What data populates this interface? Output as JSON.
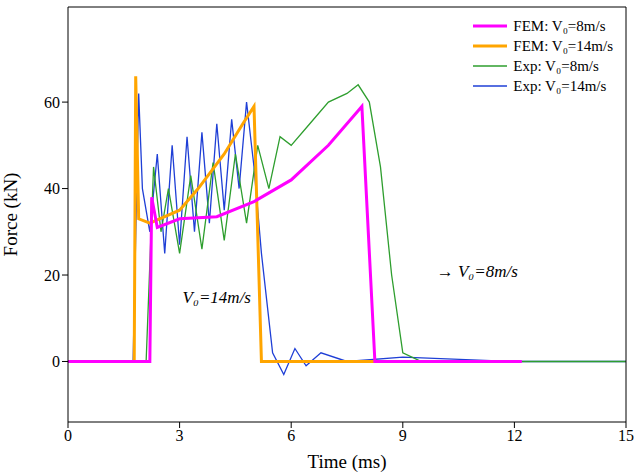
{
  "chart_data": {
    "type": "line",
    "xlabel": "Time (ms)",
    "ylabel": "Force (kN)",
    "xlim": [
      0,
      15
    ],
    "xticks": [
      0,
      3,
      6,
      9,
      12,
      15
    ],
    "ylim": [
      -14,
      82
    ],
    "yticks": [
      0,
      20,
      40,
      60
    ],
    "grid": false,
    "legend": "upper right",
    "series": [
      {
        "name": "FEM: V₀=8m/s",
        "color": "#ff00ff",
        "line_style": "solid",
        "x": [
          0,
          2.2,
          2.25,
          2.4,
          3,
          4,
          5,
          6,
          7,
          7.8,
          7.9,
          8.25,
          12.2
        ],
        "values": [
          0,
          0,
          38,
          31,
          33,
          33.5,
          37,
          42,
          50,
          58,
          59,
          0,
          0
        ]
      },
      {
        "name": "FEM: V₀=14m/s",
        "color": "#ffa500",
        "line_style": "solid",
        "x": [
          0,
          1.78,
          1.82,
          1.9,
          2.2,
          3,
          3.5,
          4.2,
          4.7,
          5.0,
          5.2,
          12
        ],
        "values": [
          0,
          0,
          66,
          33,
          32,
          35,
          40,
          48,
          55,
          59,
          0,
          0
        ]
      },
      {
        "name": "Exp: V₀=8m/s",
        "color": "#2e9e2e",
        "line_style": "solid",
        "x": [
          0,
          2.1,
          2.3,
          2.5,
          2.7,
          3.0,
          3.3,
          3.6,
          3.9,
          4.2,
          4.5,
          4.8,
          5.1,
          5.4,
          5.7,
          6.0,
          6.5,
          7.0,
          7.5,
          7.8,
          8.1,
          8.4,
          8.7,
          9.0,
          9.5,
          15
        ],
        "values": [
          0,
          0,
          45,
          30,
          40,
          25,
          43,
          26,
          46,
          28,
          48,
          32,
          50,
          40,
          52,
          50,
          55,
          60,
          62,
          64,
          60,
          45,
          20,
          2,
          0,
          0
        ]
      },
      {
        "name": "Exp: V₀=14m/s",
        "color": "#1f3fd6",
        "line_style": "solid",
        "x": [
          0,
          1.75,
          1.9,
          2.0,
          2.2,
          2.4,
          2.6,
          2.8,
          3.0,
          3.2,
          3.4,
          3.6,
          3.8,
          4.0,
          4.2,
          4.4,
          4.6,
          4.8,
          5.0,
          5.2,
          5.5,
          5.8,
          6.1,
          6.4,
          6.8,
          7.5,
          9,
          12,
          15
        ],
        "values": [
          0,
          0,
          62,
          40,
          30,
          48,
          25,
          50,
          27,
          52,
          30,
          53,
          32,
          55,
          35,
          56,
          40,
          60,
          45,
          25,
          2,
          -3,
          3,
          -1,
          2,
          0,
          1,
          0,
          0
        ]
      }
    ],
    "annotations": [
      {
        "text": "V₀=14m/s",
        "x": 4.0,
        "y": 15
      },
      {
        "text": "→ V₀=8m/s",
        "x": 11.0,
        "y": 21
      }
    ]
  }
}
